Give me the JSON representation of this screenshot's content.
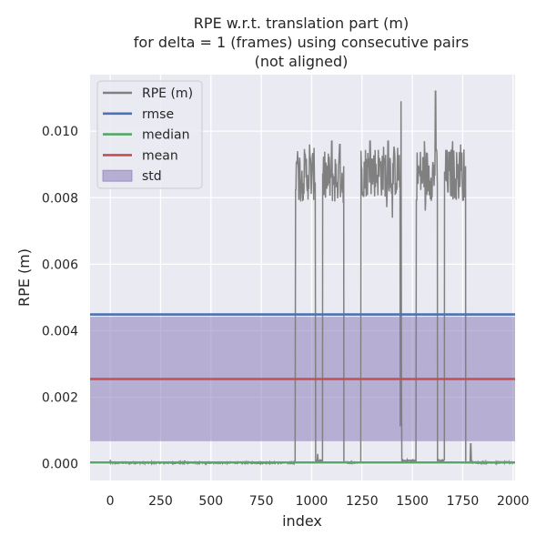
{
  "chart_data": {
    "type": "line",
    "title_lines": [
      "RPE w.r.t. translation part (m)",
      "for delta = 1 (frames) using consecutive pairs",
      "(not aligned)"
    ],
    "xlabel": "index",
    "ylabel": "RPE (m)",
    "xlim": [
      -100,
      2010
    ],
    "ylim": [
      -0.0005,
      0.0117
    ],
    "xticks": [
      0,
      250,
      500,
      750,
      1000,
      1250,
      1500,
      1750,
      2000
    ],
    "xtick_labels": [
      "0",
      "250",
      "500",
      "750",
      "1000",
      "1250",
      "1500",
      "1750",
      "2000"
    ],
    "yticks": [
      0.0,
      0.002,
      0.004,
      0.006,
      0.008,
      0.01
    ],
    "ytick_labels": [
      "0.000",
      "0.002",
      "0.004",
      "0.006",
      "0.008",
      "0.010"
    ],
    "grid": true,
    "legend_position": "top-left",
    "colors": {
      "background": "#eaeaf2",
      "grid": "#ffffff",
      "rpe": "#808080",
      "rmse": "#4c72b0",
      "median": "#55a868",
      "mean": "#c44e52",
      "std": "#8172b3"
    },
    "legend": [
      {
        "label": "RPE (m)",
        "kind": "line",
        "color": "#808080"
      },
      {
        "label": "rmse",
        "kind": "line",
        "color": "#4c72b0"
      },
      {
        "label": "median",
        "kind": "line",
        "color": "#55a868"
      },
      {
        "label": "mean",
        "kind": "line",
        "color": "#c44e52"
      },
      {
        "label": "std",
        "kind": "patch",
        "color": "#8172b3"
      }
    ],
    "x_range": [
      0,
      2000
    ],
    "stats": {
      "rmse": 0.00449,
      "median": 4e-05,
      "mean": 0.00255,
      "std_band": [
        0.00068,
        0.00442
      ]
    },
    "series": [
      {
        "name": "RPE (m)",
        "segments": [
          {
            "x_start": 0,
            "x_end": 920,
            "level": "low",
            "base": 3e-05,
            "peaks": [
              [
                0,
                0.00012
              ],
              [
                370,
                0.0001
              ]
            ]
          },
          {
            "x_start": 920,
            "x_end": 1020,
            "level": "high",
            "base": 0.0079,
            "peaks": [
              [
                930,
                0.0094
              ],
              [
                990,
                0.0096
              ]
            ]
          },
          {
            "x_start": 1020,
            "x_end": 1055,
            "level": "low",
            "base": 0.0001,
            "peaks": [
              [
                1030,
                0.0003
              ]
            ]
          },
          {
            "x_start": 1055,
            "x_end": 1160,
            "level": "high",
            "base": 0.0078,
            "peaks": [
              [
                1100,
                0.0097
              ],
              [
                1140,
                0.0096
              ]
            ]
          },
          {
            "x_start": 1160,
            "x_end": 1245,
            "level": "low",
            "base": 4e-05,
            "peaks": []
          },
          {
            "x_start": 1245,
            "x_end": 1440,
            "level": "high",
            "base": 0.008,
            "peaks": [
              [
                1290,
                0.0097
              ],
              [
                1380,
                0.0097
              ]
            ]
          },
          {
            "x_start": 1440,
            "x_end": 1448,
            "level": "spike",
            "base": 0.0005,
            "peaks": [
              [
                1444,
                0.0109
              ]
            ]
          },
          {
            "x_start": 1448,
            "x_end": 1520,
            "level": "low",
            "base": 0.0001,
            "peaks": []
          },
          {
            "x_start": 1520,
            "x_end": 1625,
            "level": "high",
            "base": 0.0079,
            "peaks": [
              [
                1560,
                0.0097
              ],
              [
                1615,
                0.0112
              ]
            ]
          },
          {
            "x_start": 1625,
            "x_end": 1660,
            "level": "low",
            "base": 0.0001,
            "peaks": []
          },
          {
            "x_start": 1660,
            "x_end": 1765,
            "level": "high",
            "base": 0.0079,
            "peaks": [
              [
                1700,
                0.0097
              ],
              [
                1740,
                0.0096
              ]
            ]
          },
          {
            "x_start": 1765,
            "x_end": 2000,
            "level": "low",
            "base": 4e-05,
            "peaks": [
              [
                1790,
                0.0006
              ]
            ]
          }
        ]
      }
    ]
  }
}
